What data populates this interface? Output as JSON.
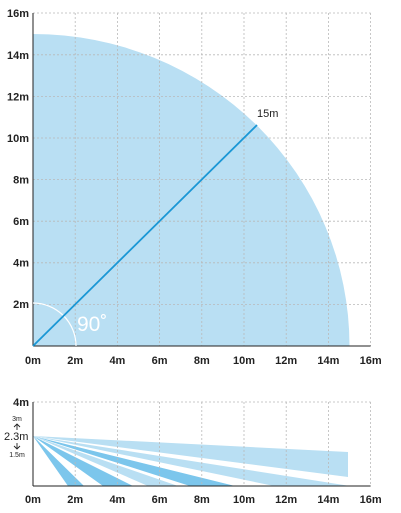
{
  "top_view": {
    "x_ticks": [
      "0m",
      "2m",
      "4m",
      "6m",
      "8m",
      "10m",
      "12m",
      "14m",
      "16m"
    ],
    "y_ticks": [
      "2m",
      "4m",
      "6m",
      "8m",
      "10m",
      "12m",
      "14m",
      "16m"
    ],
    "range_label": "15m",
    "angle_label": "90˚",
    "range_m": 15,
    "fill_color": "#b9dff3",
    "line_color": "#1a97d5"
  },
  "side_view": {
    "x_ticks": [
      "0m",
      "2m",
      "4m",
      "6m",
      "8m",
      "10m",
      "12m",
      "14m",
      "16m"
    ],
    "y_top_label": "4m",
    "height_max_label": "3m",
    "height_label": "2.3m",
    "height_min_label": "1.5m",
    "mount_height_m": 2.3
  }
}
